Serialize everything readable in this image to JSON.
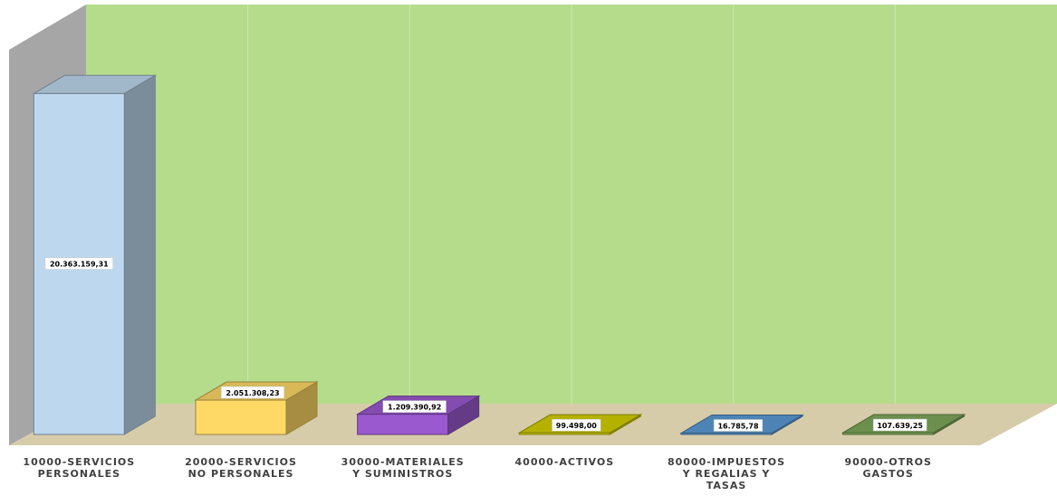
{
  "chart_data": {
    "type": "bar",
    "title": "",
    "xlabel": "",
    "ylabel": "",
    "grid": true,
    "legend": "none",
    "ylim": [
      0,
      22000000
    ],
    "categories": [
      [
        "10000-SERVICIOS",
        "PERSONALES"
      ],
      [
        "20000-SERVICIOS",
        "NO PERSONALES"
      ],
      [
        "30000-MATERIALES",
        "Y SUMINISTROS"
      ],
      [
        "40000-ACTIVOS"
      ],
      [
        "80000-IMPUESTOS",
        "Y REGALIAS  Y",
        "TASAS"
      ],
      [
        "90000-OTROS",
        "GASTOS"
      ]
    ],
    "values": [
      20363159.31,
      2051308.23,
      1209390.92,
      99498.0,
      16785.78,
      107639.25
    ],
    "data_labels": [
      "20.363.159,31",
      "2.051.308,23",
      "1.209.390,92",
      "99.498,00",
      "16.785,78",
      "107.639,25"
    ],
    "colors": {
      "wall": "#b4dc8a",
      "side_wall": "#a6a6a6",
      "floor": "#d7ccaa",
      "bars": [
        "#bdd7ee",
        "#ffd966",
        "#9b59d0",
        "#d4d000",
        "#5b9bd5",
        "#7fa85a"
      ]
    }
  }
}
